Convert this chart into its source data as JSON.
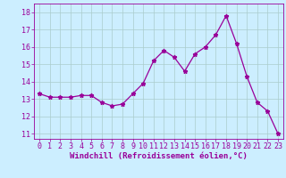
{
  "x": [
    0,
    1,
    2,
    3,
    4,
    5,
    6,
    7,
    8,
    9,
    10,
    11,
    12,
    13,
    14,
    15,
    16,
    17,
    18,
    19,
    20,
    21,
    22,
    23
  ],
  "y": [
    13.3,
    13.1,
    13.1,
    13.1,
    13.2,
    13.2,
    12.8,
    12.6,
    12.7,
    13.3,
    13.9,
    15.2,
    15.8,
    15.4,
    14.6,
    15.6,
    16.0,
    16.7,
    17.8,
    16.2,
    14.3,
    12.8,
    12.3,
    11.0
  ],
  "line_color": "#990099",
  "marker": "*",
  "marker_size": 3.5,
  "linewidth": 0.9,
  "xlabel": "Windchill (Refroidissement éolien,°C)",
  "ylim": [
    10.7,
    18.5
  ],
  "yticks": [
    11,
    12,
    13,
    14,
    15,
    16,
    17,
    18
  ],
  "xticks": [
    0,
    1,
    2,
    3,
    4,
    5,
    6,
    7,
    8,
    9,
    10,
    11,
    12,
    13,
    14,
    15,
    16,
    17,
    18,
    19,
    20,
    21,
    22,
    23
  ],
  "background_color": "#cceeff",
  "grid_color": "#aacccc",
  "tick_fontsize": 6,
  "xlabel_fontsize": 6.5
}
